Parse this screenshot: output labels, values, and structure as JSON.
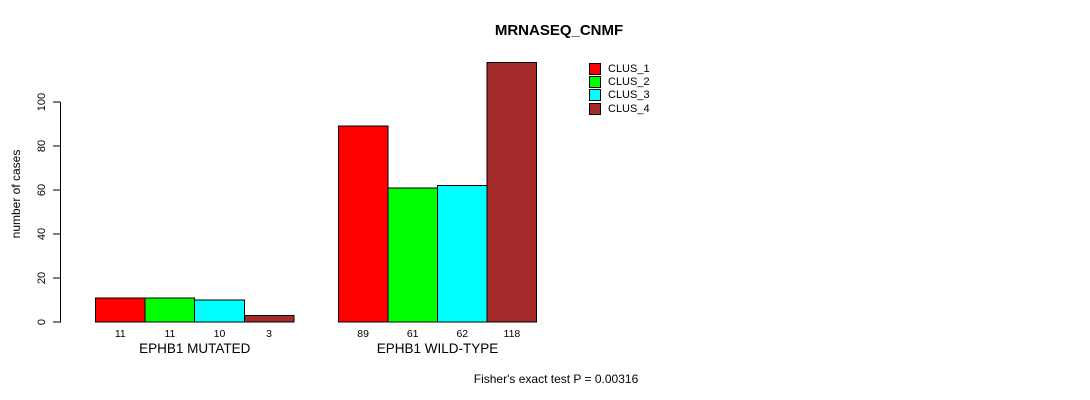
{
  "chart_data": {
    "type": "bar",
    "title": "MRNASEQ_CNMF",
    "ylabel": "number of cases",
    "xlabel": "",
    "categories": [
      "EPHB1 MUTATED",
      "EPHB1 WILD-TYPE"
    ],
    "series": [
      {
        "name": "CLUS_1",
        "color": "#FF0000",
        "values": [
          11,
          89
        ]
      },
      {
        "name": "CLUS_2",
        "color": "#00FF00",
        "values": [
          11,
          61
        ]
      },
      {
        "name": "CLUS_3",
        "color": "#00FFFF",
        "values": [
          10,
          62
        ]
      },
      {
        "name": "CLUS_4",
        "color": "#A52A2A",
        "values": [
          3,
          118
        ]
      }
    ],
    "yticks": [
      0,
      20,
      40,
      60,
      80,
      100
    ],
    "ylim": [
      0,
      118
    ],
    "grid": false,
    "legend_position": "top-right",
    "bar_value_labels_shown": true,
    "annotation": "Fisher's exact test P = 0.00316"
  }
}
